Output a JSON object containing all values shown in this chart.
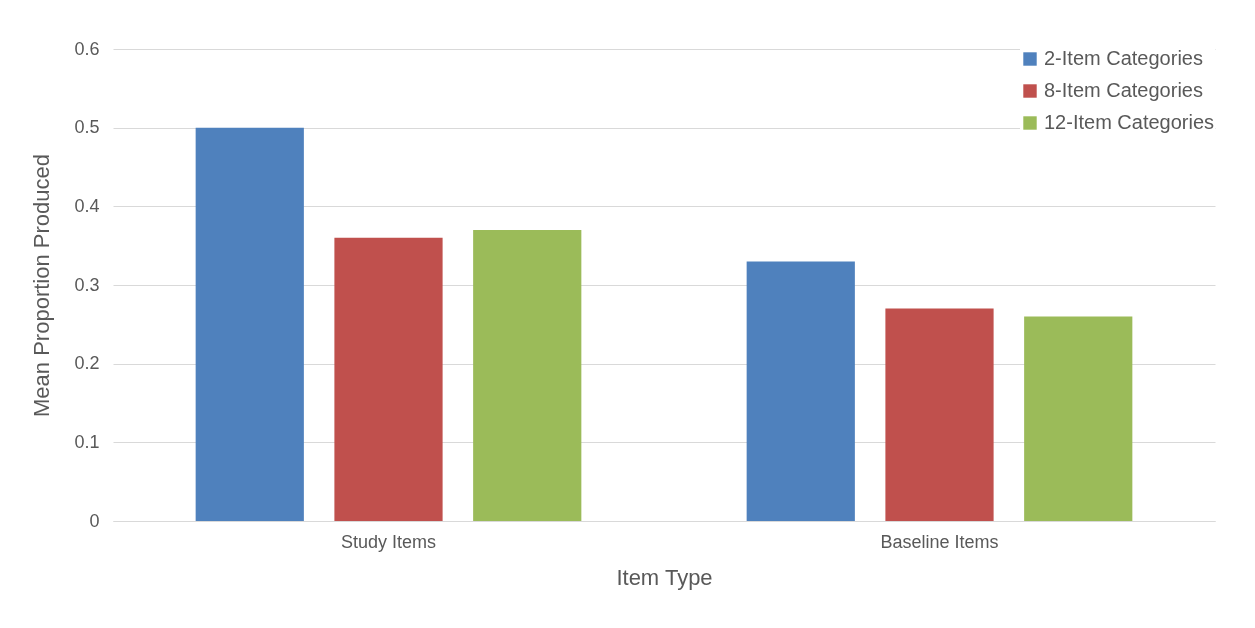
{
  "chart_data": {
    "type": "bar",
    "xlabel": "Item Type",
    "ylabel": "Mean Proportion Produced",
    "categories": [
      "Study Items",
      "Baseline Items"
    ],
    "series": [
      {
        "name": "2-Item Categories",
        "color": "#4f81bd",
        "values": [
          0.5,
          0.33
        ]
      },
      {
        "name": "8-Item Categories",
        "color": "#c0504d",
        "values": [
          0.36,
          0.27
        ]
      },
      {
        "name": "12-Item Categories",
        "color": "#9bbb59",
        "values": [
          0.37,
          0.26
        ]
      }
    ],
    "ylim": [
      0,
      0.6
    ],
    "yticks": [
      0,
      0.1,
      0.2,
      0.3,
      0.4,
      0.5,
      0.6
    ],
    "grid": "y",
    "legend": "top right"
  }
}
